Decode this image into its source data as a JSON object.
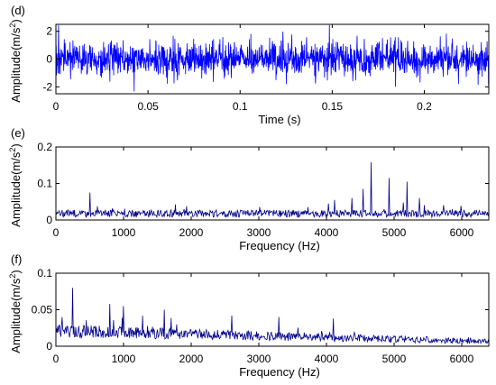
{
  "chart_data": [
    {
      "panel_label": "(d)",
      "type": "line",
      "xlabel": "Time (s)",
      "ylabel": "Amplitude(m/s",
      "ylabel_sup": "2",
      "ylabel_close": ")",
      "xlim": [
        0,
        0.235
      ],
      "ylim": [
        -2.5,
        2.5
      ],
      "xticks": [
        0,
        0.05,
        0.1,
        0.15,
        0.2
      ],
      "xtick_labels": [
        "0",
        "0.05",
        "0.1",
        "0.15",
        "0.2"
      ],
      "yticks": [
        -2,
        0,
        2
      ],
      "ytick_labels": [
        "-2",
        "0",
        "2"
      ],
      "series_color": "#0000ff",
      "signal": {
        "kind": "noise",
        "n": 1500,
        "sigma": 0.6,
        "clip": 2.45
      },
      "grid": false
    },
    {
      "panel_label": "(e)",
      "type": "line",
      "xlabel": "Frequency (Hz)",
      "ylabel": "Amplitude(m/s",
      "ylabel_sup": "2",
      "ylabel_close": ")",
      "xlim": [
        0,
        6400
      ],
      "ylim": [
        0,
        0.2
      ],
      "xticks": [
        0,
        1000,
        2000,
        3000,
        4000,
        5000,
        6000
      ],
      "xtick_labels": [
        "0",
        "1000",
        "2000",
        "3000",
        "4000",
        "5000",
        "6000"
      ],
      "yticks": [
        0,
        0.1,
        0.2
      ],
      "ytick_labels": [
        "0",
        "0.1",
        "0.2"
      ],
      "series_color": "#00008b",
      "signal": {
        "kind": "spectrum",
        "n": 700,
        "base": 0.022,
        "spread": 0.02,
        "peaks": [
          [
            500,
            0.075
          ],
          [
            4380,
            0.06
          ],
          [
            4540,
            0.085
          ],
          [
            4660,
            0.158
          ],
          [
            4930,
            0.115
          ],
          [
            5190,
            0.105
          ],
          [
            5370,
            0.06
          ],
          [
            4120,
            0.055
          ]
        ]
      },
      "grid": false
    },
    {
      "panel_label": "(f)",
      "type": "line",
      "xlabel": "Frequency (Hz)",
      "ylabel": "Amplitude(m/s",
      "ylabel_sup": "2",
      "ylabel_close": ")",
      "xlim": [
        0,
        6400
      ],
      "ylim": [
        0,
        0.1
      ],
      "xticks": [
        0,
        1000,
        2000,
        3000,
        4000,
        5000,
        6000
      ],
      "xtick_labels": [
        "0",
        "1000",
        "2000",
        "3000",
        "4000",
        "5000",
        "6000"
      ],
      "yticks": [
        0,
        0.05,
        0.1
      ],
      "ytick_labels": [
        "0",
        "0.05",
        "0.1"
      ],
      "series_color": "#00008b",
      "signal": {
        "kind": "decay",
        "n": 700,
        "start": 0.03,
        "end": 0.008,
        "spread": 0.018,
        "peaks": [
          [
            250,
            0.08
          ],
          [
            800,
            0.058
          ],
          [
            1000,
            0.055
          ],
          [
            1600,
            0.05
          ],
          [
            2600,
            0.042
          ],
          [
            3300,
            0.04
          ],
          [
            4100,
            0.038
          ]
        ]
      },
      "grid": false
    }
  ]
}
